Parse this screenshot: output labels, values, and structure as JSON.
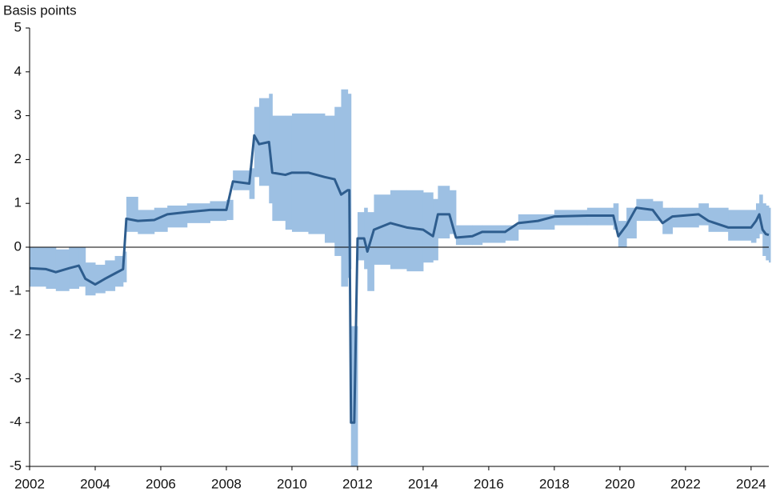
{
  "chart_data": {
    "type": "line",
    "y_label": "Basis points",
    "x": [
      2002.0,
      2002.5,
      2002.8,
      2003.2,
      2003.5,
      2003.7,
      2004.0,
      2004.3,
      2004.6,
      2004.85,
      2004.95,
      2005.3,
      2005.8,
      2006.2,
      2006.8,
      2007.5,
      2008.0,
      2008.2,
      2008.7,
      2008.85,
      2009.0,
      2009.3,
      2009.4,
      2009.8,
      2010.0,
      2010.5,
      2011.0,
      2011.3,
      2011.5,
      2011.7,
      2011.75,
      2011.8,
      2011.9,
      2012.0,
      2012.2,
      2012.3,
      2012.5,
      2013.0,
      2013.5,
      2014.0,
      2014.3,
      2014.45,
      2014.8,
      2015.0,
      2015.5,
      2015.8,
      2016.5,
      2016.9,
      2017.5,
      2018.0,
      2019.0,
      2019.8,
      2019.95,
      2020.2,
      2020.5,
      2021.0,
      2021.3,
      2021.6,
      2022.4,
      2022.7,
      2023.3,
      2024.0,
      2024.15,
      2024.25,
      2024.35,
      2024.45,
      2024.54
    ],
    "values": [
      -0.48,
      -0.5,
      -0.57,
      -0.48,
      -0.42,
      -0.72,
      -0.85,
      -0.72,
      -0.6,
      -0.5,
      0.65,
      0.6,
      0.62,
      0.75,
      0.8,
      0.85,
      0.85,
      1.5,
      1.45,
      2.55,
      2.35,
      2.4,
      1.7,
      1.65,
      1.7,
      1.7,
      1.6,
      1.55,
      1.2,
      1.3,
      1.3,
      -4.0,
      -4.0,
      0.2,
      0.2,
      -0.1,
      0.4,
      0.55,
      0.45,
      0.4,
      0.25,
      0.75,
      0.75,
      0.22,
      0.25,
      0.35,
      0.35,
      0.55,
      0.6,
      0.7,
      0.72,
      0.72,
      0.25,
      0.5,
      0.9,
      0.85,
      0.55,
      0.7,
      0.75,
      0.6,
      0.45,
      0.45,
      0.6,
      0.75,
      0.4,
      0.3,
      0.28
    ],
    "lower": [
      -0.9,
      -0.95,
      -1.0,
      -0.95,
      -0.9,
      -1.1,
      -1.05,
      -1.0,
      -0.9,
      -0.8,
      0.35,
      0.3,
      0.35,
      0.45,
      0.55,
      0.6,
      0.62,
      1.3,
      1.1,
      1.6,
      1.4,
      1.0,
      0.6,
      0.4,
      0.35,
      0.3,
      0.1,
      -0.2,
      -0.9,
      -0.7,
      -0.5,
      -5.0,
      -5.0,
      -0.3,
      -0.5,
      -1.0,
      -0.4,
      -0.5,
      -0.55,
      -0.35,
      -0.3,
      0.2,
      0.3,
      0.05,
      0.05,
      0.1,
      0.15,
      0.4,
      0.4,
      0.5,
      0.5,
      0.4,
      0.0,
      0.2,
      0.6,
      0.6,
      0.3,
      0.45,
      0.5,
      0.35,
      0.15,
      0.1,
      0.2,
      0.3,
      -0.2,
      -0.3,
      -0.35
    ],
    "upper": [
      0.0,
      0.0,
      -0.05,
      0.0,
      0.0,
      -0.35,
      -0.4,
      -0.3,
      -0.2,
      -0.1,
      1.15,
      0.85,
      0.9,
      0.95,
      1.0,
      1.05,
      1.08,
      1.75,
      1.8,
      3.2,
      3.4,
      3.5,
      3.0,
      3.0,
      3.05,
      3.05,
      3.0,
      3.2,
      3.6,
      3.5,
      3.5,
      -1.8,
      -1.8,
      0.8,
      0.9,
      0.8,
      1.2,
      1.3,
      1.3,
      1.25,
      1.1,
      1.4,
      1.3,
      0.5,
      0.5,
      0.5,
      0.5,
      0.75,
      0.75,
      0.85,
      0.9,
      1.0,
      0.6,
      0.9,
      1.1,
      1.05,
      0.9,
      0.9,
      1.0,
      0.9,
      0.85,
      0.85,
      1.0,
      1.2,
      1.0,
      0.95,
      0.9
    ],
    "line_color": "#2e5d8e",
    "band_color": "#9dc0e3",
    "xlim": [
      2002,
      2024.54
    ],
    "xticks": [
      2002,
      2004,
      2006,
      2008,
      2010,
      2012,
      2014,
      2016,
      2018,
      2020,
      2022,
      2024
    ],
    "ylim": [
      -5,
      5
    ],
    "yticks": [
      -5,
      -4,
      -3,
      -2,
      -1,
      0,
      1,
      2,
      3,
      4,
      5
    ]
  }
}
